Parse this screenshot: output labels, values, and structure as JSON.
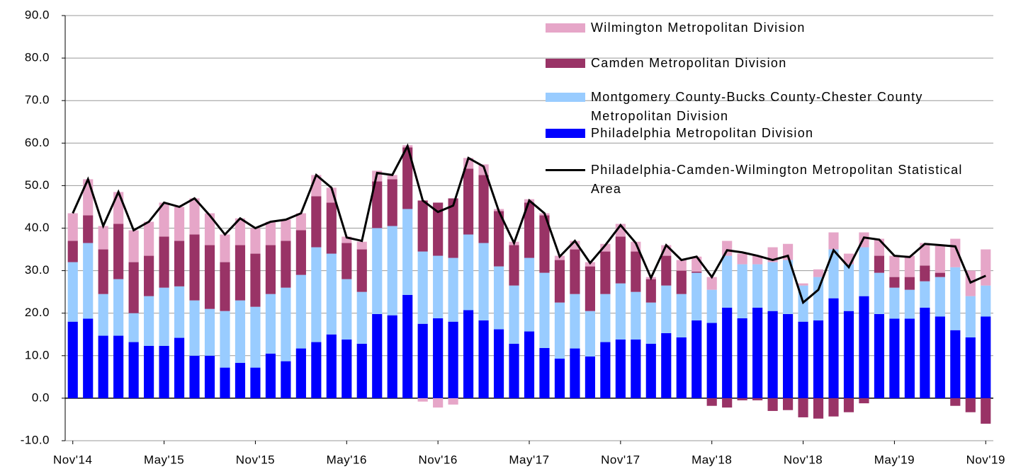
{
  "chart_data": {
    "type": "bar",
    "stacked": true,
    "categories": [
      "Nov'14",
      null,
      null,
      null,
      null,
      null,
      "May'15",
      null,
      null,
      null,
      null,
      null,
      "Nov'15",
      null,
      null,
      null,
      null,
      null,
      "May'16",
      null,
      null,
      null,
      null,
      null,
      "Nov'16",
      null,
      null,
      null,
      null,
      null,
      "May'17",
      null,
      null,
      null,
      null,
      null,
      "Nov'17",
      null,
      null,
      null,
      null,
      null,
      "May'18",
      null,
      null,
      null,
      null,
      null,
      "Nov'18",
      null,
      null,
      null,
      null,
      null,
      "May'19",
      null,
      null,
      null,
      null,
      null,
      "Nov'19"
    ],
    "series": [
      {
        "name": "Philadelphia Metropolitan Division",
        "color": "#0000ff",
        "values": [
          18,
          18.7,
          14.7,
          14.7,
          13.2,
          12.3,
          12.3,
          14.2,
          10,
          10,
          7.2,
          8.3,
          7.2,
          10.5,
          8.7,
          11.7,
          13.2,
          15,
          13.8,
          12.8,
          19.8,
          19.5,
          24.3,
          17.5,
          18.8,
          18,
          20.7,
          18.3,
          16.2,
          12.8,
          15.7,
          11.8,
          9.3,
          11.7,
          9.8,
          13.2,
          13.8,
          13.8,
          12.8,
          15.3,
          14.3,
          18.3,
          17.7,
          21.3,
          18.8,
          21.3,
          20.5,
          19.8,
          18,
          18.3,
          23.5,
          20.5,
          24,
          19.8,
          18.7,
          18.7,
          21.3,
          19.2,
          16,
          14.3,
          19.2
        ]
      },
      {
        "name": "Montgomery County-Bucks County-Chester County Metropolitan Division",
        "color": "#99ccff",
        "values": [
          14,
          17.8,
          9.8,
          13.3,
          6.8,
          11.7,
          13.7,
          12.1,
          13,
          11,
          13.3,
          14.7,
          14.3,
          14,
          17.3,
          17.3,
          22.3,
          19,
          14.2,
          12.2,
          20.2,
          21,
          20.2,
          17,
          14.7,
          15,
          17.8,
          18.2,
          14.8,
          13.7,
          17.3,
          17.7,
          13.2,
          12.8,
          10.7,
          11.3,
          13.2,
          11.2,
          9.7,
          11.2,
          10.2,
          11.2,
          7.8,
          12.2,
          12.7,
          10.2,
          11.5,
          12.7,
          8.5,
          10.2,
          11.5,
          11,
          11.5,
          9.7,
          7.3,
          6.8,
          6.2,
          9.3,
          14.8,
          9.7,
          7.3
        ]
      },
      {
        "name": "Camden Metropolitan Division",
        "color": "#993366",
        "values": [
          5,
          6.5,
          10.5,
          13,
          12,
          9.5,
          12,
          10.7,
          15.5,
          15,
          11.5,
          13,
          12.5,
          11.5,
          11,
          10.5,
          12,
          12,
          8.5,
          10,
          11,
          11,
          14.5,
          12,
          12.5,
          14,
          15.5,
          16,
          13,
          9.5,
          13,
          13.5,
          10,
          10.5,
          10.5,
          10,
          11,
          9.5,
          5.5,
          7,
          5.5,
          0.3,
          -1.8,
          -2.2,
          -0.5,
          -0.5,
          -3,
          -2.8,
          -4.5,
          -4.8,
          -4.3,
          -3.3,
          -1.2,
          4,
          2.5,
          3,
          3.7,
          1,
          -1.8,
          -3.3,
          -6
        ]
      },
      {
        "name": "Wilmington Metropolitan Division",
        "color": "#e6a6c8",
        "values": [
          6.5,
          8.5,
          5.5,
          7.5,
          7.5,
          8,
          8,
          8,
          8.5,
          7.5,
          6.5,
          6.3,
          6,
          5.5,
          5,
          4,
          5,
          3.5,
          1.5,
          1.8,
          2.5,
          1,
          0.5,
          -0.8,
          -2.2,
          -1.5,
          2.5,
          2.5,
          0.5,
          0.8,
          0.8,
          0.5,
          1,
          2,
          1,
          1.8,
          3,
          2.3,
          0.5,
          2.5,
          2.5,
          3.5,
          3,
          3.5,
          2.5,
          2,
          3.5,
          3.8,
          0.5,
          1.8,
          4,
          2.5,
          3.5,
          4,
          5,
          5,
          5.3,
          6.3,
          6.7,
          6,
          8.5
        ]
      },
      {
        "name": "Philadelphia-Camden-Wilmington Metropolitan Statistical Area",
        "color": "#000000",
        "type": "line",
        "values": [
          43.5,
          51.5,
          40.5,
          48.5,
          39.5,
          41.5,
          46,
          45,
          47,
          43,
          38.5,
          42.3,
          40,
          41.5,
          42,
          43.5,
          52.5,
          49.5,
          37.8,
          37,
          53,
          52.5,
          59.3,
          46.5,
          43.8,
          45.3,
          56.5,
          54.5,
          44,
          36.5,
          46.5,
          43.5,
          33.3,
          37,
          31.8,
          36,
          40.7,
          36.5,
          28.3,
          36,
          32.5,
          33.3,
          28.5,
          34.8,
          34.3,
          33.5,
          32.5,
          33.5,
          22.5,
          25.5,
          34.8,
          30.8,
          37.8,
          37.3,
          33.5,
          33.2,
          36.3,
          36,
          35.7,
          27.2,
          28.8
        ]
      }
    ],
    "ylim": [
      -10,
      90
    ],
    "yticks": [
      {
        "value": -10,
        "label": "-10.0"
      },
      {
        "value": 0,
        "label": "0.0"
      },
      {
        "value": 10,
        "label": "10.0"
      },
      {
        "value": 20,
        "label": "20.0"
      },
      {
        "value": 30,
        "label": "30.0"
      },
      {
        "value": 40,
        "label": "40.0"
      },
      {
        "value": 50,
        "label": "50.0"
      },
      {
        "value": 60,
        "label": "60.0"
      },
      {
        "value": 70,
        "label": "70.0"
      },
      {
        "value": 80,
        "label": "80.0"
      },
      {
        "value": 90,
        "label": "90.0"
      }
    ],
    "grid": true,
    "legend": "upper right"
  }
}
